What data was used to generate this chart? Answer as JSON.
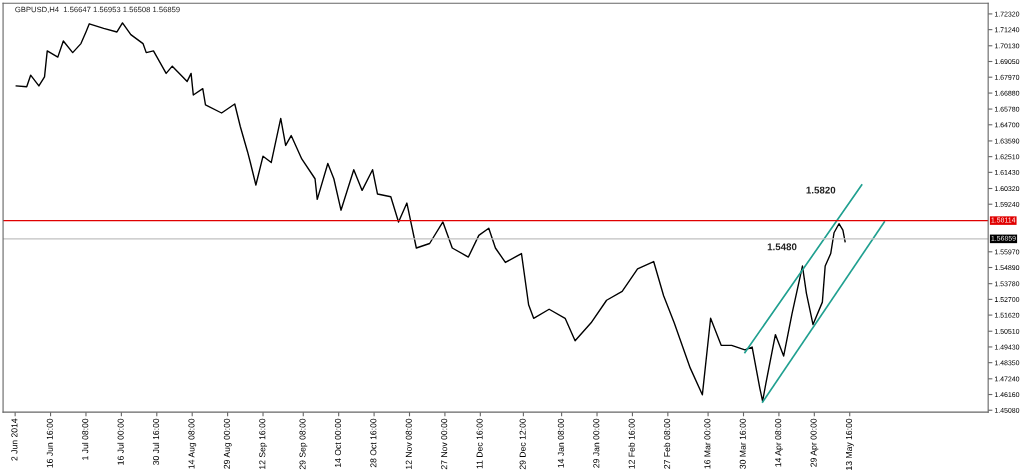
{
  "chart_data": {
    "type": "line",
    "title": "GBPUSD,H4  1.56647 1.56953 1.56508 1.56859",
    "series": [
      {
        "type": "line",
        "color": "#000000",
        "x": [
          "2014-06-02T11:00",
          "2014-06-06T19:00",
          "2014-06-08T10:00",
          "2014-06-11T20:00",
          "2014-06-14T04:00",
          "2014-06-15T07:00",
          "2014-06-19T16:00",
          "2014-06-21T23:00",
          "2014-06-25T20:00",
          "2014-06-29T06:00",
          "2014-07-01T08:00",
          "2014-07-02T17:00",
          "2014-07-08T16:00",
          "2014-07-14T04:00",
          "2014-07-16T11:00",
          "2014-07-19T22:00",
          "2014-07-24T23:00",
          "2014-07-26T07:00",
          "2014-07-29T07:00",
          "2014-08-03T13:00",
          "2014-08-06T02:00",
          "2014-08-12T06:00",
          "2014-08-13T21:00",
          "2014-08-14T19:00",
          "2014-08-18T17:00",
          "2014-08-19T20:00",
          "2014-08-26T12:00",
          "2014-08-31T23:00",
          "2014-09-03T06:00",
          "2014-09-06T06:00",
          "2014-09-07T10:00",
          "2014-09-09T17:00",
          "2014-09-12T16:00",
          "2014-09-16T02:00",
          "2014-09-20T00:00",
          "2014-09-22T01:00",
          "2014-09-24T08:00",
          "2014-09-28T17:00",
          "2014-10-04T05:00",
          "2014-10-05T03:00",
          "2014-10-09T12:00",
          "2014-10-12T00:00",
          "2014-10-14T23:00",
          "2014-10-20T06:00",
          "2014-10-23T17:00",
          "2014-10-28T01:00",
          "2014-10-30T02:00",
          "2014-11-04T14:00",
          "2014-11-07T19:00",
          "2014-11-11T06:00",
          "2014-11-15T04:00",
          "2014-11-20T16:00",
          "2014-11-26T04:00",
          "2014-11-30T01:00",
          "2014-12-06T17:00",
          "2014-12-11T01:00",
          "2014-12-15T04:00",
          "2014-12-17T22:00",
          "2014-12-22T01:00",
          "2014-12-28T17:00",
          "2014-12-31T16:00",
          "2015-01-02T18:00",
          "2015-01-09T04:00",
          "2015-01-15T19:00",
          "2015-01-19T22:00",
          "2015-01-26T13:00",
          "2015-02-01T23:00",
          "2015-02-08T10:00",
          "2015-02-14T19:00",
          "2015-02-21T11:00",
          "2015-02-25T14:00",
          "2015-03-01T23:00",
          "2015-03-08T14:00",
          "2015-03-13T15:00",
          "2015-03-17T01:00",
          "2015-03-21T10:00",
          "2015-03-25T18:00",
          "2015-03-31T06:00",
          "2015-04-03T06:00",
          "2015-04-06T11:00",
          "2015-04-07T14:00",
          "2015-04-08T23:00",
          "2015-04-12T21:00",
          "2015-04-16T07:00",
          "2015-04-19T18:00",
          "2015-04-24T02:00",
          "2015-04-25T17:00",
          "2015-04-28T11:00",
          "2015-05-02T08:00",
          "2015-05-03T12:00",
          "2015-05-05T19:00",
          "2015-05-07T04:00",
          "2015-05-09T05:00",
          "2015-05-10T20:00",
          "2015-05-11T18:00"
        ],
        "values": [
          1.6737,
          1.6731,
          1.6811,
          1.6737,
          1.6799,
          1.6978,
          1.6935,
          1.7046,
          1.6966,
          1.7028,
          1.7108,
          1.7164,
          1.7133,
          1.7108,
          1.717,
          1.709,
          1.7028,
          1.6966,
          1.6978,
          1.6823,
          1.6873,
          1.6768,
          1.6823,
          1.6675,
          1.6718,
          1.6607,
          1.6551,
          1.6613,
          1.6458,
          1.6285,
          1.6211,
          1.6056,
          1.6254,
          1.6211,
          1.6514,
          1.6328,
          1.6396,
          1.6235,
          1.6099,
          1.5957,
          1.6204,
          1.6099,
          1.5883,
          1.6161,
          1.6019,
          1.6161,
          1.5994,
          1.5975,
          1.5802,
          1.5932,
          1.5623,
          1.5654,
          1.5802,
          1.5623,
          1.5561,
          1.571,
          1.5759,
          1.5623,
          1.5524,
          1.5585,
          1.5233,
          1.514,
          1.5202,
          1.514,
          1.4985,
          1.5109,
          1.5264,
          1.5325,
          1.548,
          1.553,
          1.5295,
          1.5109,
          1.4799,
          1.4614,
          1.514,
          1.4954,
          1.4954,
          1.4923,
          1.4942,
          1.4657,
          1.457,
          1.4694,
          1.5028,
          1.488,
          1.5171,
          1.5499,
          1.5313,
          1.5097,
          1.5251,
          1.5499,
          1.5585,
          1.5728,
          1.579,
          1.5746,
          1.5666
        ]
      },
      {
        "type": "line",
        "color": "#20a090",
        "x": [
          "2015-03-31T06:00",
          "2015-05-18T15:00"
        ],
        "values": [
          1.4905,
          1.6056
        ]
      },
      {
        "type": "line",
        "color": "#20a090",
        "x": [
          "2015-04-07T14:00",
          "2015-05-28T00:00"
        ],
        "values": [
          1.4564,
          1.5802
        ]
      }
    ],
    "xlim": [
      "2014-05-28T00:00",
      "2015-07-10T00:00"
    ],
    "ylim": [
      1.4495,
      1.7305
    ],
    "xticks": [
      {
        "value": "2014-06-02",
        "label": "2 Jun 2014"
      },
      {
        "value": "2014-06-16T16:00",
        "label": "16 Jun 16:00"
      },
      {
        "value": "2014-07-01T08:00",
        "label": "1 Jul 08:00"
      },
      {
        "value": "2014-07-16T00:00",
        "label": "16 Jul 00:00"
      },
      {
        "value": "2014-07-30T16:00",
        "label": "30 Jul 16:00"
      },
      {
        "value": "2014-08-14T08:00",
        "label": "14 Aug 08:00"
      },
      {
        "value": "2014-08-29T00:00",
        "label": "29 Aug 00:00"
      },
      {
        "value": "2014-09-12T16:00",
        "label": "12 Sep 16:00"
      },
      {
        "value": "2014-09-29T08:00",
        "label": "29 Sep 08:00"
      },
      {
        "value": "2014-10-14T00:00",
        "label": "14 Oct 00:00"
      },
      {
        "value": "2014-10-28T16:00",
        "label": "28 Oct 16:00"
      },
      {
        "value": "2014-11-12T08:00",
        "label": "12 Nov 08:00"
      },
      {
        "value": "2014-11-27T00:00",
        "label": "27 Nov 00:00"
      },
      {
        "value": "2014-12-11T16:00",
        "label": "11 Dec 16:00"
      },
      {
        "value": "2014-12-29T12:00",
        "label": "29 Dec 12:00"
      },
      {
        "value": "2015-01-14T08:00",
        "label": "14 Jan 08:00"
      },
      {
        "value": "2015-01-29T00:00",
        "label": "29 Jan 00:00"
      },
      {
        "value": "2015-02-12T16:00",
        "label": "12 Feb 16:00"
      },
      {
        "value": "2015-02-27T08:00",
        "label": "27 Feb 08:00"
      },
      {
        "value": "2015-03-16T00:00",
        "label": "16 Mar 00:00"
      },
      {
        "value": "2015-03-30T16:00",
        "label": "30 Mar 16:00"
      },
      {
        "value": "2015-04-14T08:00",
        "label": "14 Apr 08:00"
      },
      {
        "value": "2015-04-29T00:00",
        "label": "29 Apr 00:00"
      },
      {
        "value": "2015-05-13T16:00",
        "label": "13 May 16:00"
      }
    ],
    "yticks": [
      {
        "value": 1.7232,
        "label": "1.72320"
      },
      {
        "value": 1.7124,
        "label": "1.71240"
      },
      {
        "value": 1.7013,
        "label": "1.70130"
      },
      {
        "value": 1.6905,
        "label": "1.69050"
      },
      {
        "value": 1.6797,
        "label": "1.67970"
      },
      {
        "value": 1.6688,
        "label": "1.66880"
      },
      {
        "value": 1.6578,
        "label": "1.65780"
      },
      {
        "value": 1.647,
        "label": "1.64700"
      },
      {
        "value": 1.6359,
        "label": "1.63590"
      },
      {
        "value": 1.6251,
        "label": "1.62510"
      },
      {
        "value": 1.6143,
        "label": "1.61430"
      },
      {
        "value": 1.6032,
        "label": "1.60320"
      },
      {
        "value": 1.5924,
        "label": "1.59240"
      },
      {
        "value": 1.5597,
        "label": "1.55970"
      },
      {
        "value": 1.5489,
        "label": "1.54890"
      },
      {
        "value": 1.5378,
        "label": "1.53780"
      },
      {
        "value": 1.527,
        "label": "1.52700"
      },
      {
        "value": 1.5162,
        "label": "1.51620"
      },
      {
        "value": 1.5051,
        "label": "1.50510"
      },
      {
        "value": 1.4943,
        "label": "1.49430"
      },
      {
        "value": 1.4835,
        "label": "1.48350"
      },
      {
        "value": 1.4724,
        "label": "1.47240"
      },
      {
        "value": 1.4616,
        "label": "1.46160"
      },
      {
        "value": 1.4508,
        "label": "1.45080"
      }
    ],
    "ref_lines": [
      {
        "axis": "y",
        "value": 1.58114,
        "label": "1.58114",
        "color": "#e00000"
      },
      {
        "axis": "y",
        "value": 1.56859,
        "label": "1.56859",
        "color": "#c0c0c0"
      }
    ],
    "annotations": [
      {
        "text": "1.5480",
        "x": "2015-04-24T02:00",
        "y": 1.5499
      },
      "1.5820"
    ],
    "grid": false,
    "legend": false
  }
}
